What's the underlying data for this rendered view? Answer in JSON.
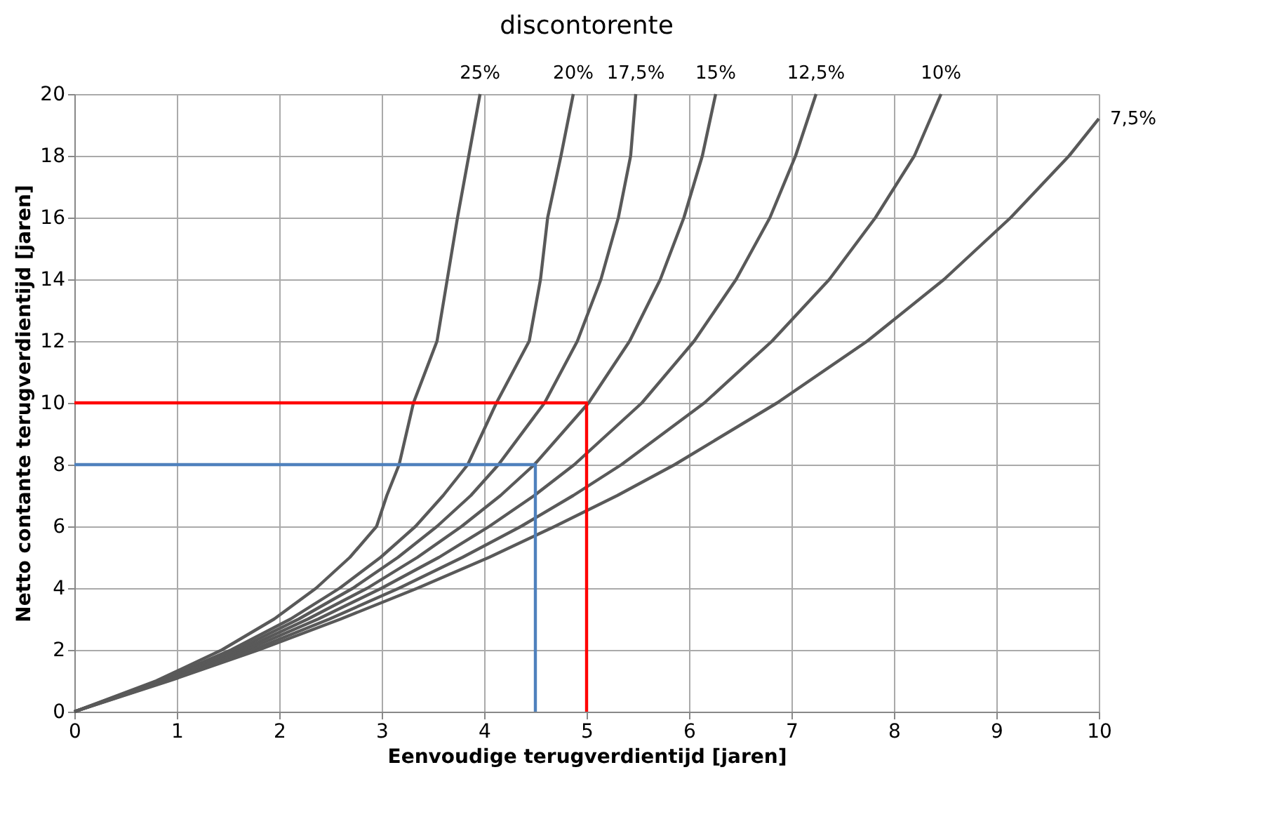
{
  "chart_data": {
    "type": "line",
    "title": "discontorente",
    "xlabel": "Eenvoudige terugverdientijd [jaren]",
    "ylabel": "Netto contante terugverdientijd [jaren]",
    "xlim": [
      0,
      10
    ],
    "ylim": [
      0,
      20
    ],
    "xticks": [
      0,
      1,
      2,
      3,
      4,
      5,
      6,
      7,
      8,
      9,
      10
    ],
    "yticks": [
      0,
      2,
      4,
      6,
      8,
      10,
      12,
      14,
      16,
      18,
      20
    ],
    "grid": true,
    "marker": "none",
    "line_style": "solid",
    "series": [
      {
        "name": "25%",
        "color": "#595959",
        "x": [
          0,
          0.8,
          1.44,
          1.95,
          2.36,
          2.69,
          2.95,
          3.05,
          3.17,
          3.31,
          3.54,
          3.64,
          3.74,
          3.85,
          3.96
        ],
        "values": [
          0,
          1,
          2,
          3,
          4,
          5,
          6,
          7,
          8,
          10,
          12,
          14,
          16,
          18,
          20
        ]
      },
      {
        "name": "20%",
        "color": "#595959",
        "x": [
          0,
          0.83,
          1.53,
          2.11,
          2.59,
          2.99,
          3.33,
          3.6,
          3.84,
          4.12,
          4.44,
          4.55,
          4.62,
          4.75,
          4.87
        ],
        "values": [
          0,
          1,
          2,
          3,
          4,
          5,
          6,
          7,
          8,
          10,
          12,
          14,
          16,
          18,
          20
        ]
      },
      {
        "name": "17,5%",
        "color": "#595959",
        "x": [
          0,
          0.85,
          1.58,
          2.19,
          2.72,
          3.16,
          3.54,
          3.87,
          4.14,
          4.59,
          4.91,
          5.14,
          5.31,
          5.43,
          5.48
        ],
        "values": [
          0,
          1,
          2,
          3,
          4,
          5,
          6,
          7,
          8,
          10,
          12,
          14,
          16,
          18,
          20
        ]
      },
      {
        "name": "15%",
        "color": "#595959",
        "x": [
          0,
          0.87,
          1.63,
          2.28,
          2.86,
          3.35,
          3.78,
          4.16,
          4.49,
          5.02,
          5.42,
          5.72,
          5.95,
          6.13,
          6.26
        ],
        "values": [
          0,
          1,
          2,
          3,
          4,
          5,
          6,
          7,
          8,
          10,
          12,
          14,
          16,
          18,
          20
        ]
      },
      {
        "name": "12,5%",
        "color": "#595959",
        "x": [
          0,
          0.89,
          1.68,
          2.38,
          3.0,
          3.56,
          4.05,
          4.49,
          4.88,
          5.54,
          6.05,
          6.46,
          6.79,
          7.04,
          7.24
        ],
        "values": [
          0,
          1,
          2,
          3,
          4,
          5,
          6,
          7,
          8,
          10,
          12,
          14,
          16,
          18,
          20
        ]
      },
      {
        "name": "10%",
        "color": "#595959",
        "x": [
          0,
          0.91,
          1.74,
          2.49,
          3.17,
          3.79,
          4.36,
          4.87,
          5.34,
          6.15,
          6.81,
          7.37,
          7.82,
          8.2,
          8.46
        ],
        "values": [
          0,
          1,
          2,
          3,
          4,
          5,
          6,
          7,
          8,
          10,
          12,
          14,
          16,
          18,
          20
        ]
      },
      {
        "name": "7,5%",
        "color": "#595959",
        "x": [
          0,
          0.93,
          1.8,
          2.6,
          3.35,
          4.05,
          4.69,
          5.3,
          5.86,
          6.86,
          7.74,
          8.49,
          9.14,
          9.71,
          10
        ],
        "values": [
          0,
          1,
          2,
          3,
          4,
          5,
          6,
          7,
          8,
          10,
          12,
          14,
          16,
          18,
          19.2
        ]
      },
      {
        "color": "#ff0000",
        "x": [
          5,
          5,
          0
        ],
        "values": [
          0,
          10,
          10
        ]
      },
      {
        "color": "#4f81bd",
        "x": [
          0,
          4.5,
          4.5
        ],
        "values": [
          8,
          8,
          0
        ]
      }
    ]
  }
}
